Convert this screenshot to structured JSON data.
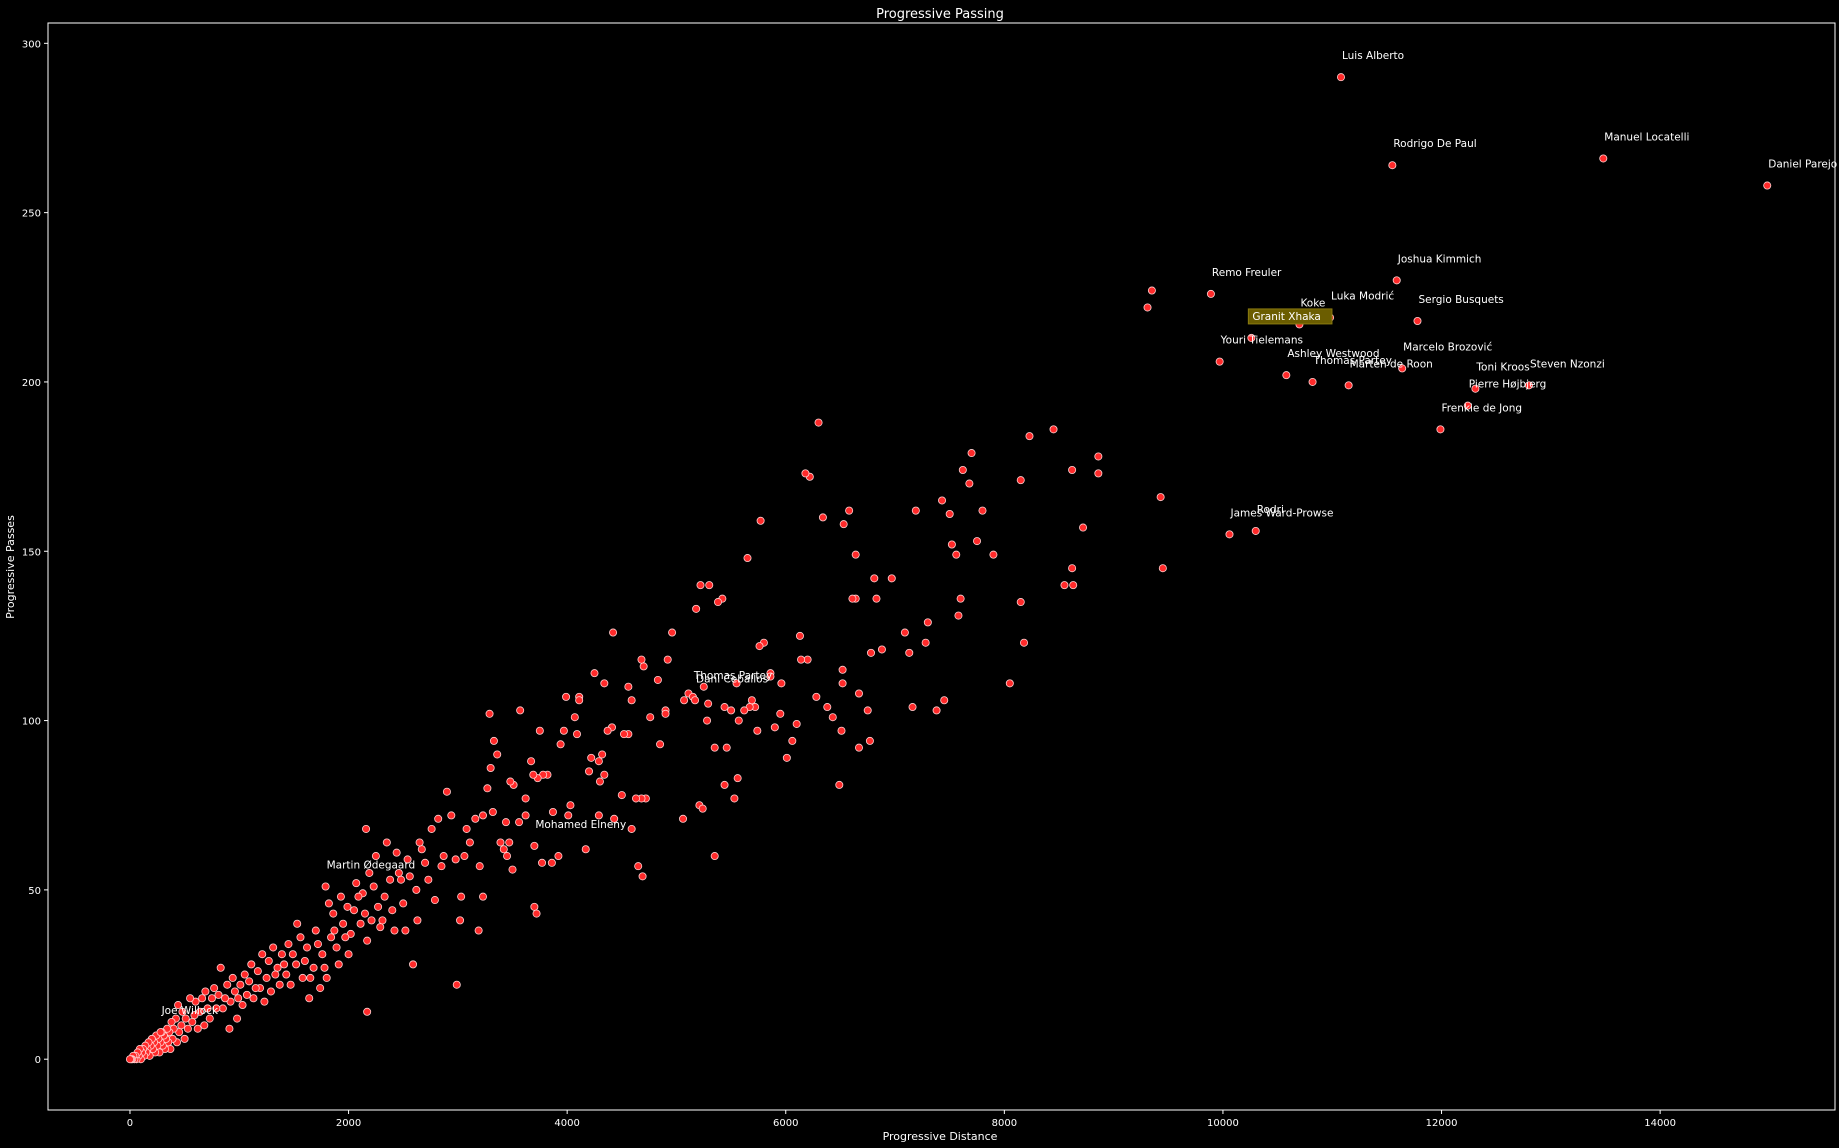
{
  "chart_data": {
    "type": "scatter",
    "title": "Progressive Passing",
    "xlabel": "Progressive Distance",
    "ylabel": "Progressive Passes",
    "xlim": [
      -750,
      15600
    ],
    "ylim": [
      -15,
      306
    ],
    "xticks": [
      0,
      2000,
      4000,
      6000,
      8000,
      10000,
      12000,
      14000
    ],
    "yticks": [
      0,
      50,
      100,
      150,
      200,
      250,
      300
    ],
    "grid": false,
    "colors": {
      "background": "#000000",
      "marker_fill": "#ff2a2a",
      "marker_edge": "#ffd0d0",
      "text": "#ffffff",
      "highlight_box": "#6b5d00"
    },
    "highlight": "Granit Xhaka",
    "labeled_points": [
      {
        "name": "Luis Alberto",
        "x": 11080,
        "y": 290
      },
      {
        "name": "Manuel Locatelli",
        "x": 13480,
        "y": 266
      },
      {
        "name": "Rodrigo De Paul",
        "x": 11550,
        "y": 264
      },
      {
        "name": "Daniel Parejo",
        "x": 14980,
        "y": 258
      },
      {
        "name": "Joshua Kimmich",
        "x": 11590,
        "y": 230
      },
      {
        "name": "Remo Freuler",
        "x": 9890,
        "y": 226
      },
      {
        "name": "Luka Modrić",
        "x": 10980,
        "y": 219
      },
      {
        "name": "Sergio Busquets",
        "x": 11780,
        "y": 218
      },
      {
        "name": "Koke",
        "x": 10700,
        "y": 217
      },
      {
        "name": "Granit Xhaka",
        "x": 10260,
        "y": 213
      },
      {
        "name": "Youri Tielemans",
        "x": 9970,
        "y": 206
      },
      {
        "name": "Marcelo Brozović",
        "x": 11640,
        "y": 204
      },
      {
        "name": "Ashley Westwood",
        "x": 10580,
        "y": 202
      },
      {
        "name": "Steven Nzonzi",
        "x": 12800,
        "y": 199
      },
      {
        "name": "Thomas Partey",
        "x": 10820,
        "y": 200
      },
      {
        "name": "Marten de Roon",
        "x": 11150,
        "y": 199
      },
      {
        "name": "Toni Kroos",
        "x": 12310,
        "y": 198
      },
      {
        "name": "Pierre Højbjerg",
        "x": 12240,
        "y": 193
      },
      {
        "name": "Frenkie de Jong",
        "x": 11990,
        "y": 186
      },
      {
        "name": "Rodri",
        "x": 10300,
        "y": 156
      },
      {
        "name": "James Ward-Prowse",
        "x": 10060,
        "y": 155
      },
      {
        "name": "Thomas Partey",
        "x": 5150,
        "y": 107
      },
      {
        "name": "Dani Ceballos",
        "x": 5170,
        "y": 106
      },
      {
        "name": "Mohamed Elneny",
        "x": 3700,
        "y": 63
      },
      {
        "name": "Martin Ødegaard",
        "x": 1790,
        "y": 51
      },
      {
        "name": "Joe Willock",
        "x": 280,
        "y": 8
      }
    ],
    "points": [
      [
        9350,
        227
      ],
      [
        9310,
        222
      ],
      [
        9430,
        166
      ],
      [
        9450,
        145
      ],
      [
        8860,
        178
      ],
      [
        8860,
        173
      ],
      [
        8720,
        157
      ],
      [
        8620,
        174
      ],
      [
        8620,
        145
      ],
      [
        8630,
        140
      ],
      [
        8550,
        140
      ],
      [
        8450,
        186
      ],
      [
        8230,
        184
      ],
      [
        8150,
        171
      ],
      [
        8150,
        135
      ],
      [
        8180,
        123
      ],
      [
        8050,
        111
      ],
      [
        7900,
        149
      ],
      [
        7800,
        162
      ],
      [
        7750,
        153
      ],
      [
        7700,
        179
      ],
      [
        7680,
        170
      ],
      [
        7620,
        174
      ],
      [
        7600,
        136
      ],
      [
        7580,
        131
      ],
      [
        7560,
        149
      ],
      [
        7520,
        152
      ],
      [
        7500,
        161
      ],
      [
        7430,
        165
      ],
      [
        7450,
        106
      ],
      [
        7380,
        103
      ],
      [
        7300,
        129
      ],
      [
        7280,
        123
      ],
      [
        7160,
        104
      ],
      [
        7130,
        120
      ],
      [
        7090,
        126
      ],
      [
        7190,
        162
      ],
      [
        6970,
        142
      ],
      [
        6880,
        121
      ],
      [
        6810,
        142
      ],
      [
        6830,
        136
      ],
      [
        6780,
        120
      ],
      [
        6750,
        103
      ],
      [
        6770,
        94
      ],
      [
        6670,
        92
      ],
      [
        6670,
        108
      ],
      [
        6640,
        136
      ],
      [
        6610,
        136
      ],
      [
        6580,
        162
      ],
      [
        6640,
        149
      ],
      [
        6530,
        158
      ],
      [
        6520,
        115
      ],
      [
        6520,
        111
      ],
      [
        6510,
        97
      ],
      [
        6490,
        81
      ],
      [
        6430,
        101
      ],
      [
        6380,
        104
      ],
      [
        6340,
        160
      ],
      [
        6300,
        188
      ],
      [
        6280,
        107
      ],
      [
        6220,
        172
      ],
      [
        6180,
        173
      ],
      [
        6200,
        118
      ],
      [
        6140,
        118
      ],
      [
        6130,
        125
      ],
      [
        6100,
        99
      ],
      [
        6060,
        94
      ],
      [
        6010,
        89
      ],
      [
        5960,
        111
      ],
      [
        5950,
        102
      ],
      [
        5900,
        98
      ],
      [
        5860,
        114
      ],
      [
        5860,
        113
      ],
      [
        5800,
        123
      ],
      [
        5770,
        159
      ],
      [
        5760,
        122
      ],
      [
        5720,
        104
      ],
      [
        5740,
        97
      ],
      [
        5690,
        106
      ],
      [
        5650,
        148
      ],
      [
        5670,
        104
      ],
      [
        5620,
        103
      ],
      [
        5570,
        100
      ],
      [
        5560,
        83
      ],
      [
        5530,
        77
      ],
      [
        5550,
        111
      ],
      [
        5500,
        103
      ],
      [
        5460,
        92
      ],
      [
        5440,
        104
      ],
      [
        5440,
        81
      ],
      [
        5420,
        136
      ],
      [
        5380,
        135
      ],
      [
        5350,
        92
      ],
      [
        5350,
        60
      ],
      [
        5300,
        140
      ],
      [
        5290,
        105
      ],
      [
        5280,
        100
      ],
      [
        5220,
        140
      ],
      [
        5250,
        110
      ],
      [
        5210,
        75
      ],
      [
        5240,
        74
      ],
      [
        5180,
        133
      ],
      [
        5110,
        108
      ],
      [
        5070,
        106
      ],
      [
        5060,
        71
      ],
      [
        4960,
        126
      ],
      [
        4920,
        118
      ],
      [
        4900,
        103
      ],
      [
        4900,
        102
      ],
      [
        4850,
        93
      ],
      [
        4830,
        112
      ],
      [
        4760,
        101
      ],
      [
        4700,
        116
      ],
      [
        4680,
        118
      ],
      [
        4720,
        77
      ],
      [
        4680,
        77
      ],
      [
        4630,
        77
      ],
      [
        4690,
        54
      ],
      [
        4650,
        57
      ],
      [
        4560,
        110
      ],
      [
        4590,
        106
      ],
      [
        4560,
        96
      ],
      [
        4590,
        68
      ],
      [
        4520,
        96
      ],
      [
        4500,
        78
      ],
      [
        4420,
        126
      ],
      [
        4430,
        71
      ],
      [
        4410,
        98
      ],
      [
        4370,
        97
      ],
      [
        4340,
        111
      ],
      [
        4320,
        90
      ],
      [
        4340,
        84
      ],
      [
        4290,
        88
      ],
      [
        4300,
        82
      ],
      [
        4290,
        72
      ],
      [
        4250,
        114
      ],
      [
        4220,
        89
      ],
      [
        4200,
        85
      ],
      [
        4170,
        62
      ],
      [
        4110,
        107
      ],
      [
        4110,
        106
      ],
      [
        4090,
        96
      ],
      [
        4070,
        101
      ],
      [
        4030,
        75
      ],
      [
        4010,
        72
      ],
      [
        3990,
        107
      ],
      [
        3970,
        97
      ],
      [
        3940,
        93
      ],
      [
        3920,
        60
      ],
      [
        3870,
        73
      ],
      [
        3820,
        84
      ],
      [
        3860,
        58
      ],
      [
        3780,
        84
      ],
      [
        3750,
        97
      ],
      [
        3770,
        58
      ],
      [
        3730,
        83
      ],
      [
        3670,
        88
      ],
      [
        3690,
        84
      ],
      [
        3700,
        45
      ],
      [
        3720,
        43
      ],
      [
        3620,
        77
      ],
      [
        3620,
        72
      ],
      [
        3570,
        103
      ],
      [
        3560,
        70
      ],
      [
        3510,
        81
      ],
      [
        3480,
        82
      ],
      [
        3500,
        56
      ],
      [
        3470,
        64
      ],
      [
        3450,
        60
      ],
      [
        3440,
        70
      ],
      [
        3420,
        62
      ],
      [
        3390,
        64
      ],
      [
        3360,
        90
      ],
      [
        3330,
        94
      ],
      [
        3300,
        86
      ],
      [
        3320,
        73
      ],
      [
        3290,
        102
      ],
      [
        3270,
        80
      ],
      [
        3230,
        72
      ],
      [
        3230,
        48
      ],
      [
        3200,
        57
      ],
      [
        3190,
        38
      ],
      [
        3160,
        71
      ],
      [
        3110,
        64
      ],
      [
        3080,
        68
      ],
      [
        3060,
        60
      ],
      [
        3030,
        48
      ],
      [
        3020,
        41
      ],
      [
        2980,
        59
      ],
      [
        2990,
        22
      ],
      [
        2940,
        72
      ],
      [
        2900,
        79
      ],
      [
        2870,
        60
      ],
      [
        2850,
        57
      ],
      [
        2820,
        71
      ],
      [
        2790,
        47
      ],
      [
        2760,
        68
      ],
      [
        2730,
        53
      ],
      [
        2700,
        58
      ],
      [
        2670,
        62
      ],
      [
        2650,
        64
      ],
      [
        2630,
        41
      ],
      [
        2620,
        50
      ],
      [
        2590,
        28
      ],
      [
        2560,
        54
      ],
      [
        2540,
        59
      ],
      [
        2520,
        38
      ],
      [
        2500,
        46
      ],
      [
        2480,
        53
      ],
      [
        2460,
        55
      ],
      [
        2440,
        61
      ],
      [
        2420,
        38
      ],
      [
        2400,
        44
      ],
      [
        2380,
        53
      ],
      [
        2350,
        64
      ],
      [
        2330,
        48
      ],
      [
        2310,
        41
      ],
      [
        2290,
        39
      ],
      [
        2270,
        45
      ],
      [
        2250,
        60
      ],
      [
        2230,
        51
      ],
      [
        2210,
        41
      ],
      [
        2190,
        55
      ],
      [
        2170,
        35
      ],
      [
        2150,
        43
      ],
      [
        2160,
        68
      ],
      [
        2170,
        14
      ],
      [
        2130,
        49
      ],
      [
        2110,
        40
      ],
      [
        2090,
        48
      ],
      [
        2070,
        52
      ],
      [
        2050,
        44
      ],
      [
        2020,
        37
      ],
      [
        2000,
        31
      ],
      [
        1990,
        45
      ],
      [
        1970,
        36
      ],
      [
        1950,
        40
      ],
      [
        1930,
        48
      ],
      [
        1910,
        28
      ],
      [
        1890,
        33
      ],
      [
        1870,
        38
      ],
      [
        1860,
        43
      ],
      [
        1840,
        36
      ],
      [
        1820,
        46
      ],
      [
        1800,
        24
      ],
      [
        1780,
        27
      ],
      [
        1760,
        31
      ],
      [
        1740,
        21
      ],
      [
        1720,
        34
      ],
      [
        1700,
        38
      ],
      [
        1680,
        27
      ],
      [
        1650,
        24
      ],
      [
        1640,
        18
      ],
      [
        1620,
        33
      ],
      [
        1600,
        29
      ],
      [
        1580,
        24
      ],
      [
        1560,
        36
      ],
      [
        1530,
        40
      ],
      [
        1520,
        28
      ],
      [
        1490,
        31
      ],
      [
        1470,
        22
      ],
      [
        1450,
        34
      ],
      [
        1430,
        25
      ],
      [
        1410,
        28
      ],
      [
        1390,
        31
      ],
      [
        1370,
        22
      ],
      [
        1350,
        27
      ],
      [
        1330,
        25
      ],
      [
        1310,
        33
      ],
      [
        1290,
        20
      ],
      [
        1270,
        29
      ],
      [
        1250,
        24
      ],
      [
        1230,
        17
      ],
      [
        1210,
        31
      ],
      [
        1190,
        21
      ],
      [
        1170,
        26
      ],
      [
        1150,
        21
      ],
      [
        1130,
        18
      ],
      [
        1110,
        28
      ],
      [
        1090,
        23
      ],
      [
        1070,
        19
      ],
      [
        1050,
        25
      ],
      [
        1030,
        16
      ],
      [
        1010,
        22
      ],
      [
        990,
        18
      ],
      [
        980,
        12
      ],
      [
        960,
        20
      ],
      [
        940,
        24
      ],
      [
        920,
        17
      ],
      [
        910,
        9
      ],
      [
        890,
        22
      ],
      [
        870,
        18
      ],
      [
        850,
        15
      ],
      [
        830,
        27
      ],
      [
        810,
        19
      ],
      [
        790,
        15
      ],
      [
        770,
        21
      ],
      [
        750,
        18
      ],
      [
        730,
        12
      ],
      [
        710,
        15
      ],
      [
        690,
        20
      ],
      [
        680,
        10
      ],
      [
        660,
        18
      ],
      [
        640,
        14
      ],
      [
        620,
        9
      ],
      [
        600,
        17
      ],
      [
        590,
        13
      ],
      [
        570,
        11
      ],
      [
        550,
        18
      ],
      [
        530,
        9
      ],
      [
        510,
        12
      ],
      [
        500,
        6
      ],
      [
        480,
        14
      ],
      [
        470,
        10
      ],
      [
        450,
        8
      ],
      [
        440,
        16
      ],
      [
        430,
        5
      ],
      [
        420,
        12
      ],
      [
        400,
        9
      ],
      [
        390,
        6
      ],
      [
        380,
        11
      ],
      [
        370,
        3
      ],
      [
        360,
        8
      ],
      [
        350,
        5
      ],
      [
        340,
        9
      ],
      [
        330,
        6
      ],
      [
        320,
        3
      ],
      [
        310,
        7
      ],
      [
        300,
        4
      ],
      [
        290,
        8
      ],
      [
        280,
        5
      ],
      [
        270,
        2
      ],
      [
        260,
        6
      ],
      [
        250,
        4
      ],
      [
        240,
        7
      ],
      [
        230,
        2
      ],
      [
        220,
        5
      ],
      [
        210,
        3
      ],
      [
        200,
        6
      ],
      [
        190,
        4
      ],
      [
        180,
        1
      ],
      [
        170,
        5
      ],
      [
        160,
        3
      ],
      [
        150,
        2
      ],
      [
        140,
        4
      ],
      [
        130,
        1
      ],
      [
        120,
        3
      ],
      [
        110,
        2
      ],
      [
        100,
        0
      ],
      [
        90,
        3
      ],
      [
        80,
        1
      ],
      [
        70,
        2
      ],
      [
        60,
        0
      ],
      [
        50,
        1
      ],
      [
        40,
        0
      ],
      [
        30,
        1
      ],
      [
        20,
        0
      ],
      [
        10,
        0
      ],
      [
        0,
        0
      ]
    ]
  }
}
